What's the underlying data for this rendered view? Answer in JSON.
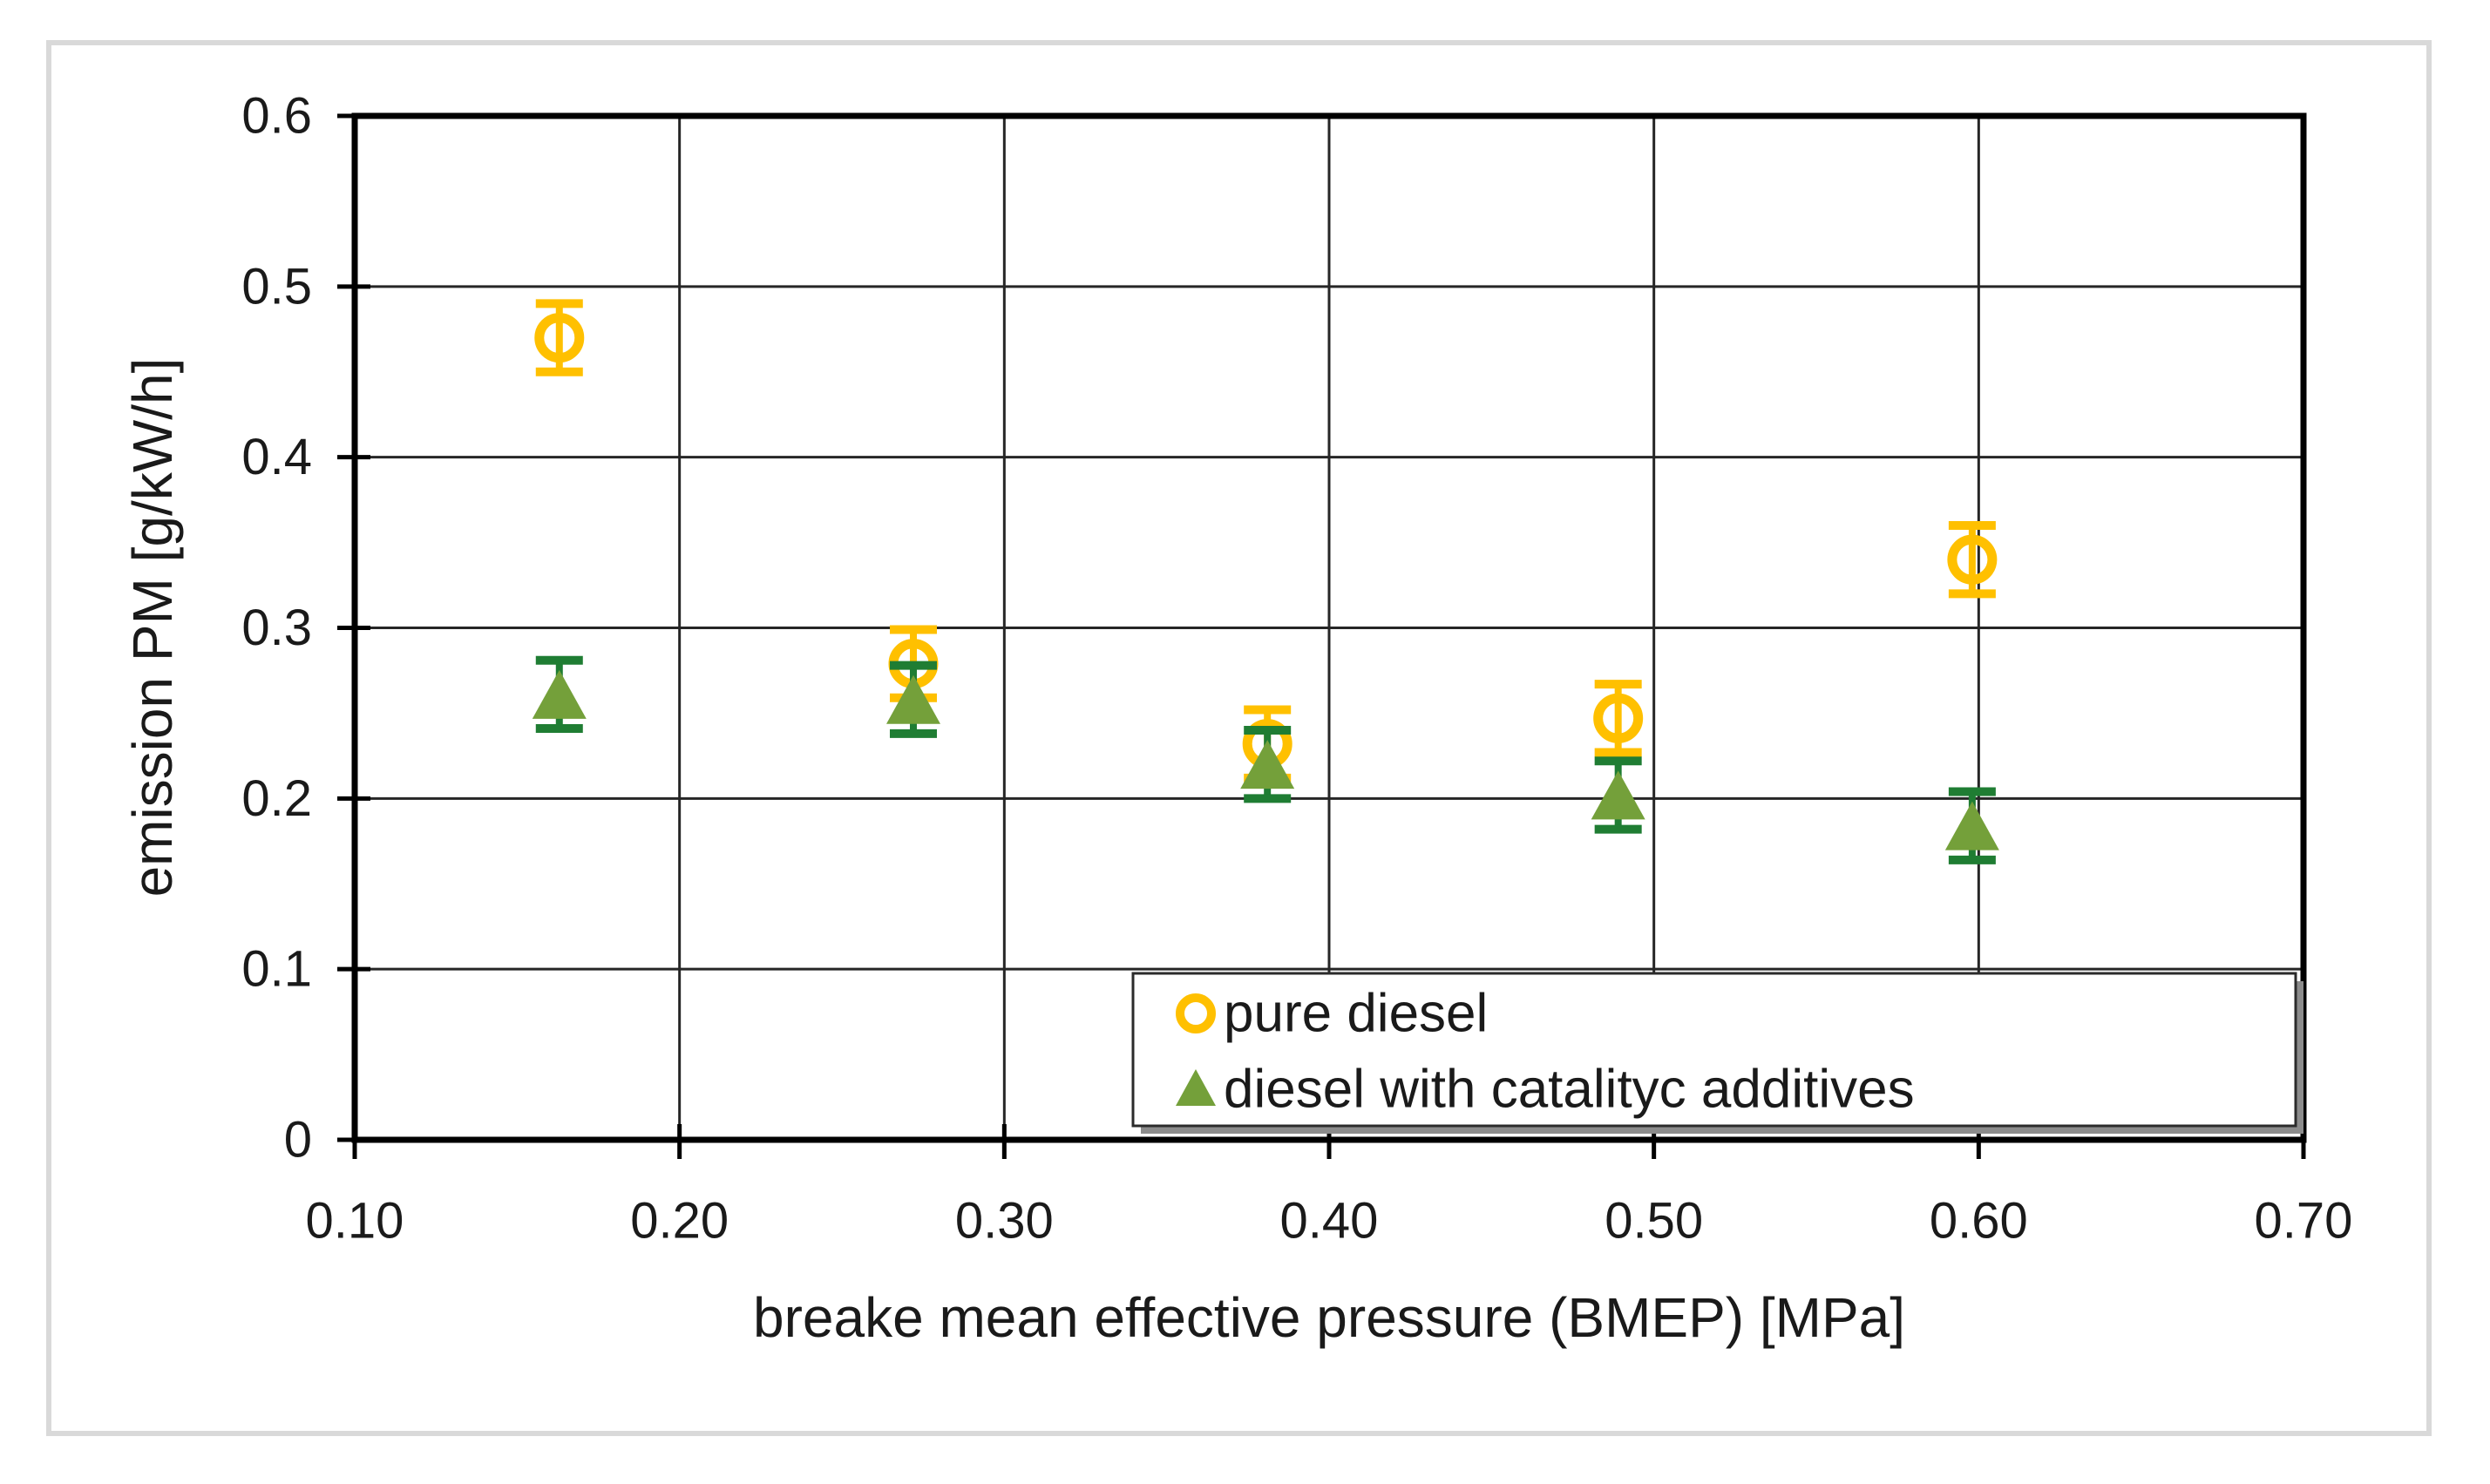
{
  "chart_data": {
    "type": "scatter",
    "title": "",
    "xlabel": "breake mean effective pressure (BMEP) [MPa]",
    "ylabel": "emission PM [g/kW/h]",
    "xlim": [
      0.1,
      0.7
    ],
    "ylim": [
      0,
      0.6
    ],
    "x_ticks": {
      "values": [
        0.1,
        0.2,
        0.3,
        0.4,
        0.5,
        0.6,
        0.7
      ],
      "labels": [
        "0.10",
        "0.20",
        "0.30",
        "0.40",
        "0.50",
        "0.60",
        "0.70"
      ]
    },
    "y_ticks": {
      "values": [
        0,
        0.1,
        0.2,
        0.3,
        0.4,
        0.5,
        0.6
      ],
      "labels": [
        "0",
        "0.1",
        "0.2",
        "0.3",
        "0.4",
        "0.5",
        "0.6"
      ]
    },
    "grid": "both",
    "legend_position": "inside-bottom-right",
    "series": [
      {
        "name": "pure diesel",
        "marker": "open-circle",
        "color": "#FFC000",
        "error_bar_color": "#FFC000",
        "points": [
          {
            "x": 0.163,
            "y": 0.47,
            "err": 0.02
          },
          {
            "x": 0.272,
            "y": 0.279,
            "err": 0.02
          },
          {
            "x": 0.381,
            "y": 0.232,
            "err": 0.02
          },
          {
            "x": 0.489,
            "y": 0.247,
            "err": 0.02
          },
          {
            "x": 0.598,
            "y": 0.34,
            "err": 0.02
          }
        ]
      },
      {
        "name": "diesel with catalityc additives",
        "marker": "filled-triangle",
        "color": "#74A03A",
        "error_bar_color": "#1F7D33",
        "points": [
          {
            "x": 0.163,
            "y": 0.261,
            "err": 0.02
          },
          {
            "x": 0.272,
            "y": 0.258,
            "err": 0.02
          },
          {
            "x": 0.381,
            "y": 0.22,
            "err": 0.02
          },
          {
            "x": 0.489,
            "y": 0.202,
            "err": 0.02
          },
          {
            "x": 0.598,
            "y": 0.184,
            "err": 0.02
          }
        ]
      }
    ],
    "colors": {
      "frame_border": "#D9D9D9",
      "plot_border": "#000000",
      "gridline": "#262626",
      "tick_mark": "#000000",
      "tick_label": "#1A1A1A",
      "axis_title": "#1A1A1A",
      "legend_text": "#1A1A1A",
      "legend_border": "#2B2B2B",
      "legend_shadow": "#8C8C8C",
      "background": "#FFFFFF"
    }
  }
}
